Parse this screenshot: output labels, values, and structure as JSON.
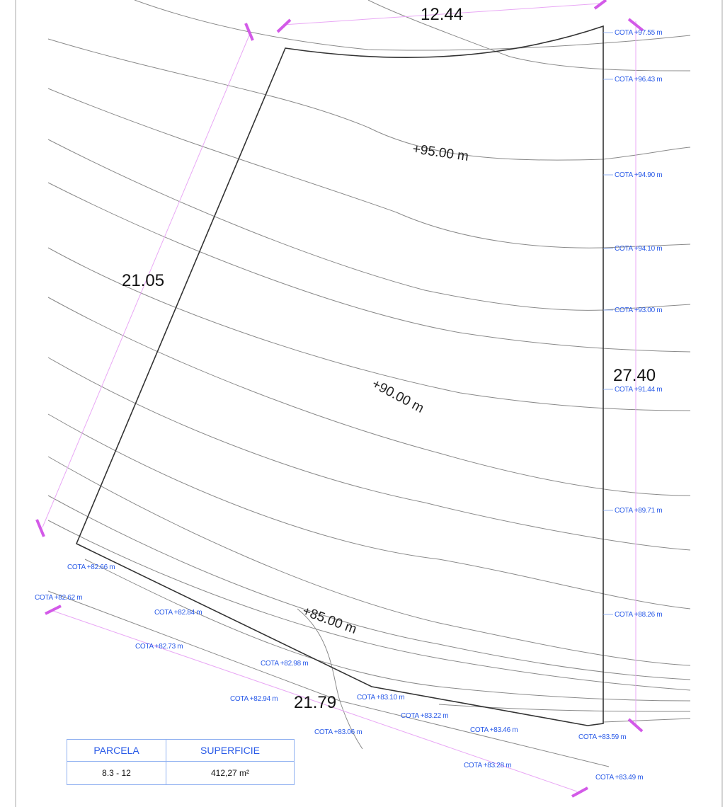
{
  "dimensions": {
    "top": "12.44",
    "left": "21.05",
    "right": "27.40",
    "bottom": "21.79"
  },
  "contour_labels": [
    "+95.00 m",
    "+90.00 m",
    "+85.00 m"
  ],
  "cota_right": [
    "COTA +97.55 m",
    "COTA +96.43 m",
    "COTA +94.90 m",
    "COTA +94.10 m",
    "COTA +93.00 m",
    "COTA +91.44 m",
    "COTA +89.71 m",
    "COTA +88.26 m"
  ],
  "cota_bottom": [
    "COTA +82.66 m",
    "COTA +82.62 m",
    "COTA +82.84 m",
    "COTA +82.73 m",
    "COTA +82.98 m",
    "COTA +82.94 m",
    "COTA +83.06 m",
    "COTA +83.10 m",
    "COTA +83.22 m",
    "COTA +83.46 m",
    "COTA +83.59 m",
    "COTA +83.28 m",
    "COTA +83.49 m"
  ],
  "table": {
    "headers": [
      "PARCELA",
      "SUPERFICIE"
    ],
    "rows": [
      [
        "8.3 - 12",
        "412,27 m²"
      ]
    ]
  },
  "colors": {
    "cota_text": "#2a5be8",
    "dimension_lines": "#d35ae8",
    "boundary": "#333333",
    "contours": "#8a8a8a"
  }
}
